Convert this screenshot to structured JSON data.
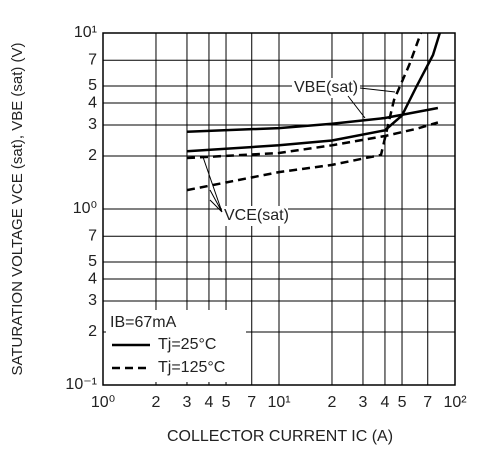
{
  "chart_data": {
    "type": "line",
    "log_x": true,
    "log_y": true,
    "grid": true,
    "x_label": "COLLECTOR CURRENT   IC (A)",
    "y_label": "SATURATION VOLTAGE   VCE (sat), VBE (sat) (V)",
    "xlim": [
      1,
      100
    ],
    "ylim": [
      0.1,
      10
    ],
    "xticks": [
      {
        "value": 1,
        "label": "10⁰"
      },
      2,
      3,
      4,
      5,
      7,
      {
        "value": 10,
        "label": "10¹"
      },
      {
        "value": 20,
        "label": "2"
      },
      {
        "value": 30,
        "label": "3"
      },
      {
        "value": 40,
        "label": "4"
      },
      {
        "value": 50,
        "label": "5"
      },
      {
        "value": 70,
        "label": "7"
      },
      {
        "value": 100,
        "label": "10²"
      }
    ],
    "yticks": [
      {
        "value": 0.1,
        "label": "10⁻¹"
      },
      {
        "value": 0.2,
        "label": "2"
      },
      {
        "value": 0.3,
        "label": "3"
      },
      {
        "value": 0.4,
        "label": "4"
      },
      {
        "value": 0.5,
        "label": "5"
      },
      {
        "value": 0.7,
        "label": "7"
      },
      {
        "value": 1,
        "label": "10⁰"
      },
      2,
      3,
      4,
      5,
      7,
      {
        "value": 10,
        "label": "10¹"
      }
    ],
    "series": [
      {
        "color": "#000000",
        "dash": false,
        "x": [
          3,
          10,
          20,
          40,
          80
        ],
        "values": [
          2.75,
          2.88,
          3.05,
          3.29,
          3.75
        ]
      },
      {
        "color": "#000000",
        "dash": true,
        "x": [
          3,
          10,
          20,
          40,
          60,
          80
        ],
        "values": [
          1.95,
          2.08,
          2.3,
          2.6,
          2.85,
          3.1
        ]
      },
      {
        "color": "#000000",
        "dash": false,
        "x": [
          3,
          10,
          20,
          40,
          50,
          60,
          75,
          82
        ],
        "values": [
          2.13,
          2.3,
          2.45,
          2.8,
          3.4,
          4.9,
          7.5,
          10
        ]
      },
      {
        "color": "#000000",
        "dash": true,
        "x": [
          3,
          10,
          20,
          38,
          45,
          55,
          64
        ],
        "values": [
          1.28,
          1.62,
          1.78,
          2.03,
          4.16,
          6.6,
          10
        ]
      }
    ],
    "annotations": [
      "VBE(sat)",
      "VCE(sat)"
    ],
    "legend": {
      "title": "IB=67mA",
      "entries": [
        {
          "label": "Tj=25°C",
          "dash": false
        },
        {
          "label": "Tj=125°C",
          "dash": true
        }
      ]
    }
  }
}
